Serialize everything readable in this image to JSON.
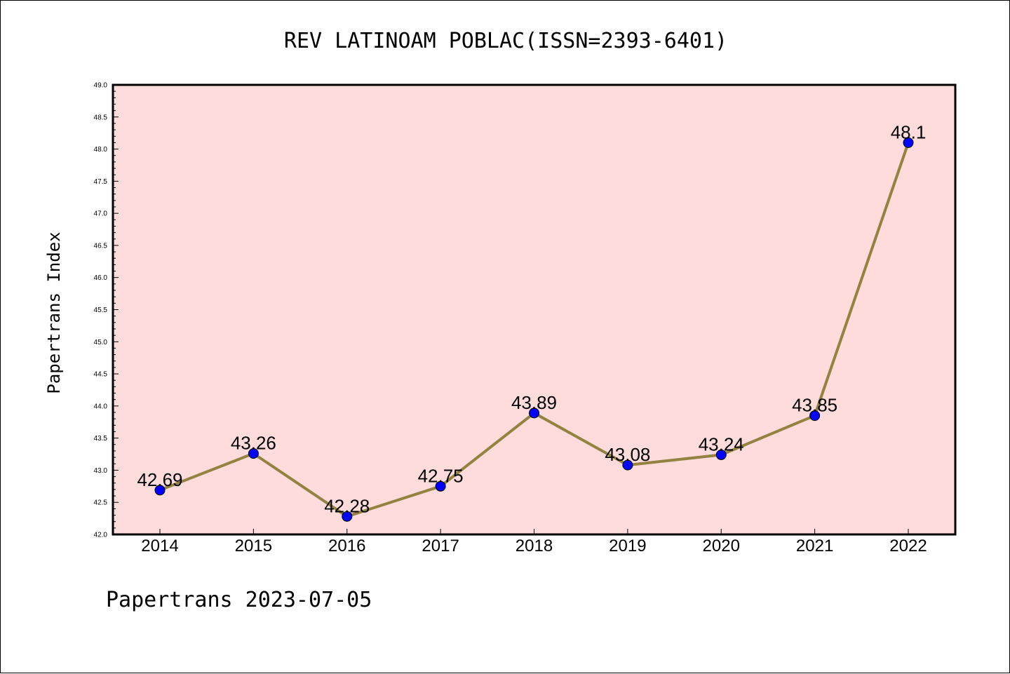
{
  "chart_data": {
    "type": "line",
    "title": "REV LATINOAM POBLAC(ISSN=2393-6401)",
    "xlabel": "",
    "ylabel": "Papertrans Index",
    "categories": [
      "2014",
      "2015",
      "2016",
      "2017",
      "2018",
      "2019",
      "2020",
      "2021",
      "2022"
    ],
    "series": [
      {
        "values": [
          42.69,
          43.26,
          42.28,
          42.75,
          43.89,
          43.08,
          43.24,
          43.85,
          48.1
        ],
        "labels": [
          "42.69",
          "43.26",
          "42.28",
          "42.75",
          "43.89",
          "43.08",
          "43.24",
          "43.85",
          "48.1"
        ]
      }
    ],
    "ylim": [
      42.0,
      49.0
    ],
    "yticks": [
      "42.0",
      "42.5",
      "43.0",
      "43.5",
      "44.0",
      "44.5",
      "45.0",
      "45.5",
      "46.0",
      "46.5",
      "47.0",
      "47.5",
      "48.0",
      "48.5",
      "49.0"
    ],
    "grid": false,
    "colors": {
      "plot_background": "#ffdcdc",
      "line": "#948240",
      "marker": "#0000ff"
    }
  },
  "footer": "Papertrans 2023-07-05"
}
